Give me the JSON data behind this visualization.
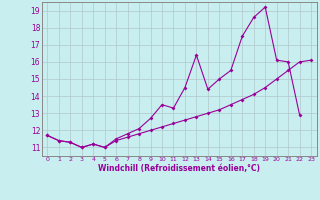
{
  "xlabel": "Windchill (Refroidissement éolien,°C)",
  "background_color": "#c8eef0",
  "grid_color": "#b0c8cc",
  "line_color": "#990099",
  "spine_color": "#888888",
  "xlim": [
    -0.5,
    23.5
  ],
  "ylim": [
    10.5,
    19.5
  ],
  "yticks": [
    11,
    12,
    13,
    14,
    15,
    16,
    17,
    18,
    19
  ],
  "xticks": [
    0,
    1,
    2,
    3,
    4,
    5,
    6,
    7,
    8,
    9,
    10,
    11,
    12,
    13,
    14,
    15,
    16,
    17,
    18,
    19,
    20,
    21,
    22,
    23
  ],
  "series1_x": [
    0,
    1,
    2,
    3,
    4,
    5,
    6,
    7,
    8,
    9,
    10,
    11,
    12,
    13,
    14,
    15,
    16,
    17,
    18,
    19,
    20,
    21,
    22
  ],
  "series1_y": [
    11.7,
    11.4,
    11.3,
    11.0,
    11.2,
    11.0,
    11.5,
    11.8,
    12.1,
    12.7,
    13.5,
    13.3,
    14.5,
    16.4,
    14.4,
    15.0,
    15.5,
    17.5,
    18.6,
    19.2,
    16.1,
    16.0,
    12.9
  ],
  "series2_x": [
    0,
    1,
    2,
    3,
    4,
    5,
    6,
    7,
    8,
    9,
    10,
    11,
    12,
    13,
    14,
    15,
    16,
    17,
    18,
    19,
    20,
    21,
    22,
    23
  ],
  "series2_y": [
    11.7,
    11.4,
    11.3,
    11.0,
    11.2,
    11.0,
    11.4,
    11.6,
    11.8,
    12.0,
    12.2,
    12.4,
    12.6,
    12.8,
    13.0,
    13.2,
    13.5,
    13.8,
    14.1,
    14.5,
    15.0,
    15.5,
    16.0,
    16.1
  ]
}
